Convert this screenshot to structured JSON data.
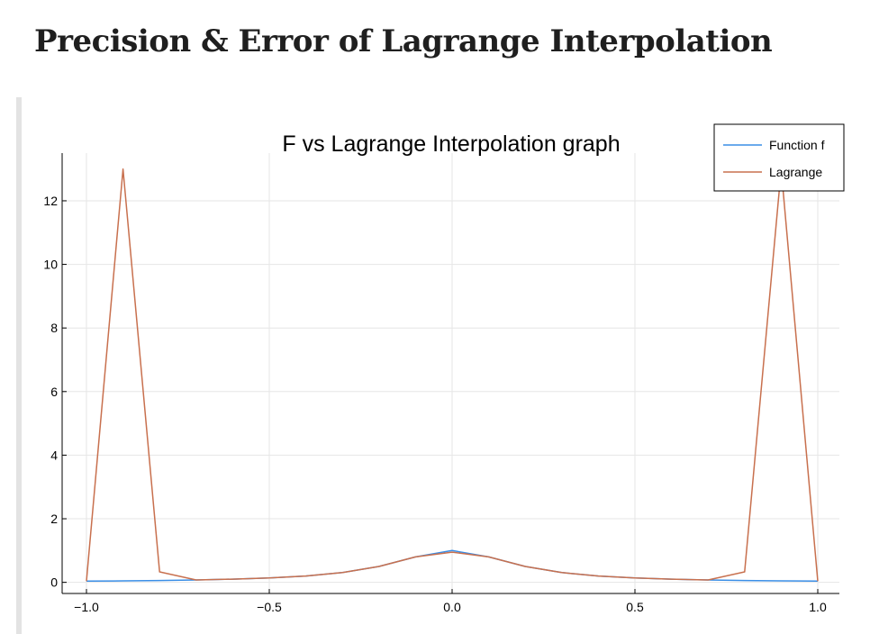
{
  "page": {
    "title": "Precision & Error of Lagrange Interpolation"
  },
  "chart_data": {
    "type": "line",
    "title": "F vs Lagrange Interpolation graph",
    "xlabel": "",
    "ylabel": "",
    "xlim": [
      -1.0,
      1.0
    ],
    "ylim": [
      -0.35,
      13.5
    ],
    "x_ticks": [
      -1.0,
      -0.5,
      0.0,
      0.5,
      1.0
    ],
    "x_tick_labels": [
      "−1.0",
      "−0.5",
      "0.0",
      "0.5",
      "1.0"
    ],
    "y_ticks": [
      0,
      2,
      4,
      6,
      8,
      10,
      12
    ],
    "y_tick_labels": [
      "0",
      "2",
      "4",
      "6",
      "8",
      "10",
      "12"
    ],
    "grid": true,
    "legend_position": "top-right",
    "series": [
      {
        "name": "Function f",
        "color": "#3a8ee6",
        "points": [
          [
            -1.0,
            0.038
          ],
          [
            -0.9,
            0.047
          ],
          [
            -0.8,
            0.059
          ],
          [
            -0.7,
            0.075
          ],
          [
            -0.6,
            0.1
          ],
          [
            -0.5,
            0.138
          ],
          [
            -0.4,
            0.2
          ],
          [
            -0.3,
            0.308
          ],
          [
            -0.2,
            0.5
          ],
          [
            -0.1,
            0.8
          ],
          [
            0.0,
            1.0
          ],
          [
            0.1,
            0.8
          ],
          [
            0.2,
            0.5
          ],
          [
            0.3,
            0.308
          ],
          [
            0.4,
            0.2
          ],
          [
            0.5,
            0.138
          ],
          [
            0.6,
            0.1
          ],
          [
            0.7,
            0.075
          ],
          [
            0.8,
            0.059
          ],
          [
            0.9,
            0.047
          ],
          [
            1.0,
            0.038
          ]
        ]
      },
      {
        "name": "Lagrange",
        "color": "#c8704e",
        "points": [
          [
            -1.0,
            0.038
          ],
          [
            -0.9,
            13.0
          ],
          [
            -0.8,
            0.33
          ],
          [
            -0.7,
            0.075
          ],
          [
            -0.6,
            0.1
          ],
          [
            -0.5,
            0.138
          ],
          [
            -0.4,
            0.2
          ],
          [
            -0.3,
            0.308
          ],
          [
            -0.2,
            0.5
          ],
          [
            -0.1,
            0.8
          ],
          [
            0.0,
            0.95
          ],
          [
            0.1,
            0.8
          ],
          [
            0.2,
            0.5
          ],
          [
            0.3,
            0.308
          ],
          [
            0.4,
            0.2
          ],
          [
            0.5,
            0.138
          ],
          [
            0.6,
            0.1
          ],
          [
            0.7,
            0.075
          ],
          [
            0.8,
            0.33
          ],
          [
            0.9,
            13.0
          ],
          [
            1.0,
            0.038
          ]
        ]
      }
    ],
    "colors": {
      "grid": "#e6e6e6",
      "axis": "#000000",
      "legend_border": "#000000"
    }
  }
}
